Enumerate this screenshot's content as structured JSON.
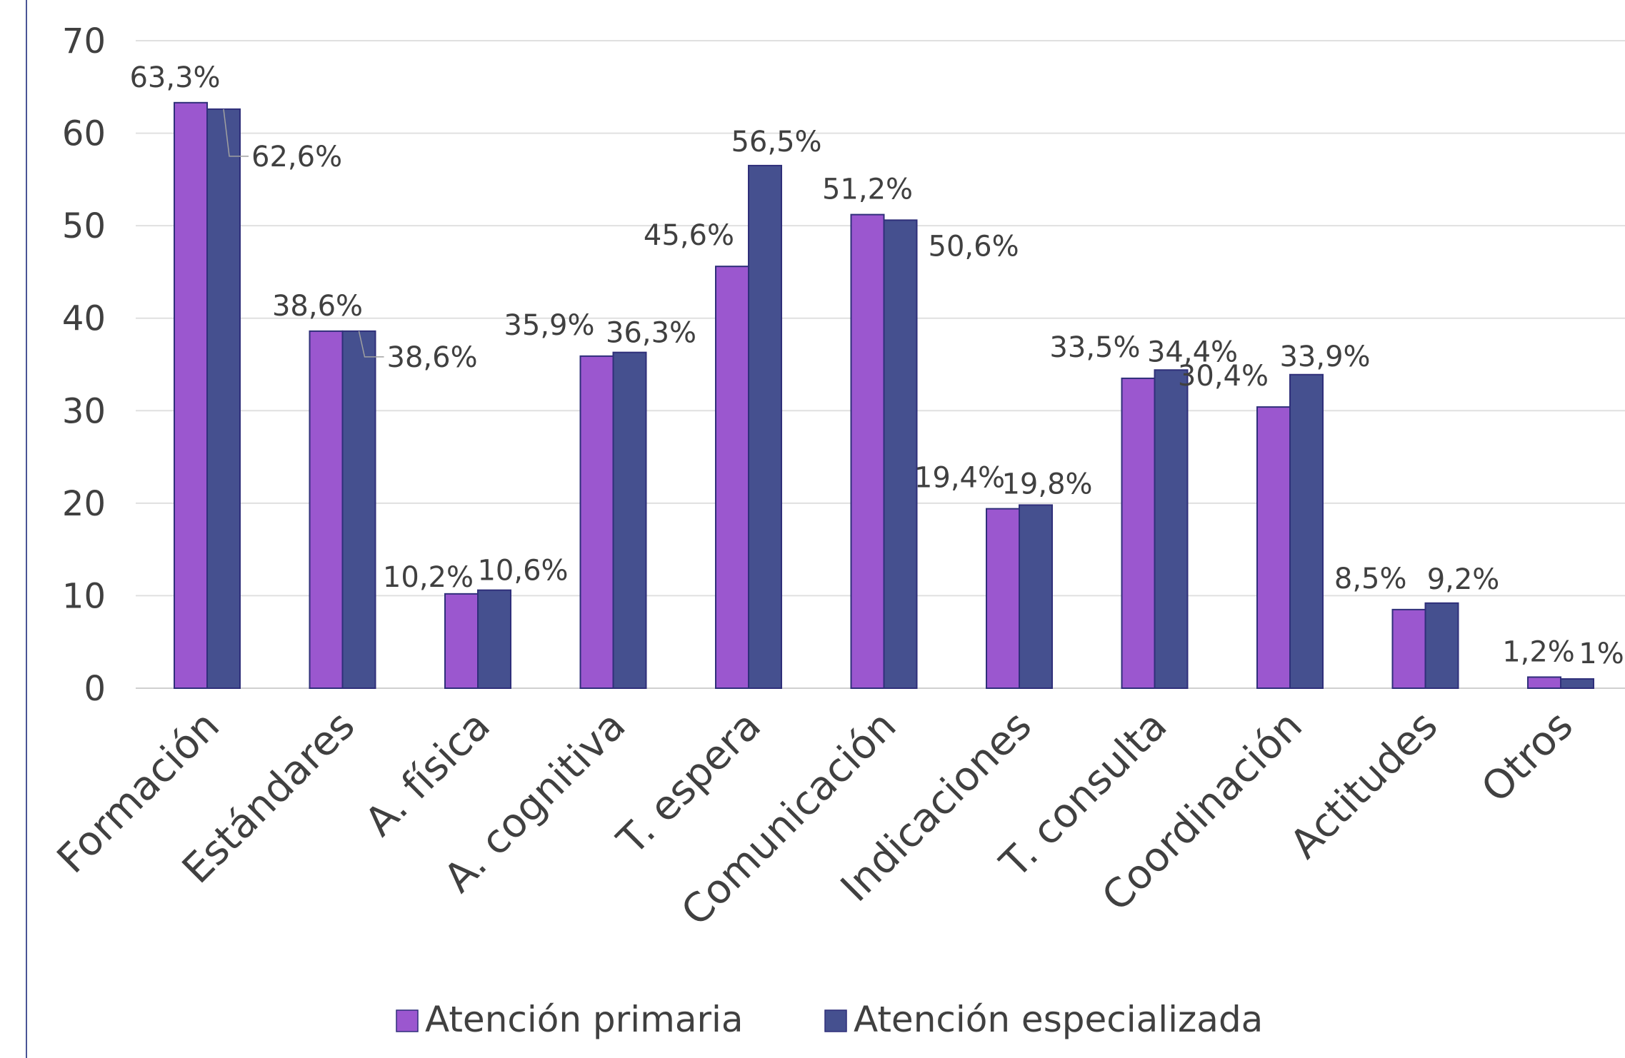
{
  "chart_data": {
    "type": "bar",
    "categories": [
      "Formación",
      "Estándares",
      "A. física",
      "A. cognitiva",
      "T. espera",
      "Comunicación",
      "Indicaciones",
      "T. consulta",
      "Coordinación",
      "Actitudes",
      "Otros"
    ],
    "series": [
      {
        "name": "Atención primaria",
        "color": "#9b57cf",
        "values": [
          63.3,
          38.6,
          10.2,
          35.9,
          45.6,
          51.2,
          19.4,
          33.5,
          30.4,
          8.5,
          1.2
        ],
        "labels": [
          "63,3%",
          "38,6%",
          "10,2%",
          "35,9%",
          "45,6%",
          "51,2%",
          "19,4%",
          "33,5%",
          "30,4%",
          "8,5%",
          "1,2%"
        ]
      },
      {
        "name": "Atención especializada",
        "color": "#45508f",
        "values": [
          62.6,
          38.6,
          10.6,
          36.3,
          56.5,
          50.6,
          19.8,
          34.4,
          33.9,
          9.2,
          1.0
        ],
        "labels": [
          "62,6%",
          "38,6%",
          "10,6%",
          "36,3%",
          "56,5%",
          "50,6%",
          "19,8%",
          "34,4%",
          "33,9%",
          "9,2%",
          "1%"
        ]
      }
    ],
    "ylim": [
      0,
      70
    ],
    "yticks": [
      0,
      10,
      20,
      30,
      40,
      50,
      60,
      70
    ],
    "grid": true,
    "legend": "bottom"
  }
}
